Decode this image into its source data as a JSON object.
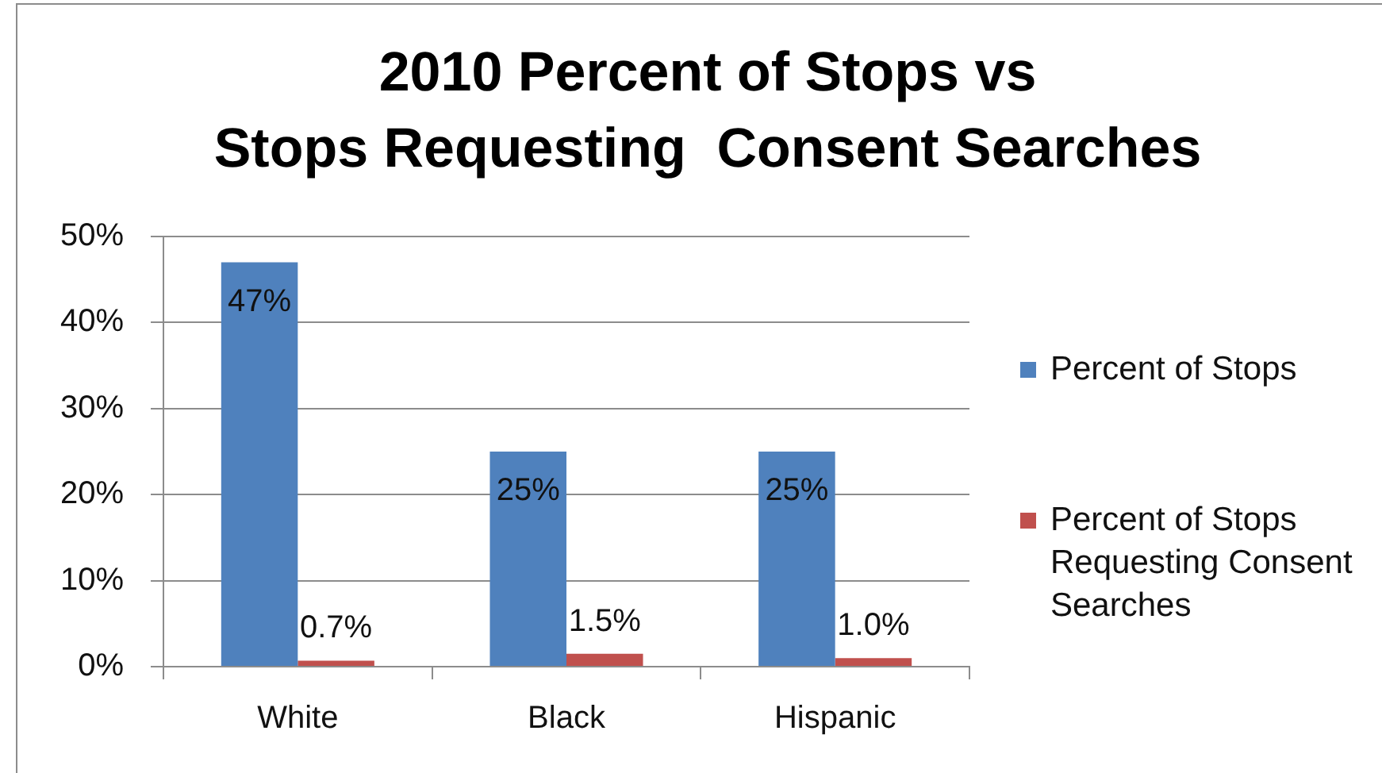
{
  "chart_data": {
    "type": "bar",
    "title": "2010 Percent of Stops vs\nStops Requesting  Consent Searches",
    "categories": [
      "White",
      "Black",
      "Hispanic"
    ],
    "series": [
      {
        "name": "Percent of Stops",
        "color": "#4f81bd",
        "values": [
          47,
          25,
          25
        ],
        "value_labels": [
          "47%",
          "25%",
          "25%"
        ]
      },
      {
        "name": "Percent of Stops Requesting Consent Searches",
        "color": "#c0504d",
        "values": [
          0.7,
          1.5,
          1.0
        ],
        "value_labels": [
          "0.7%",
          "1.5%",
          "1.0%"
        ]
      }
    ],
    "ylim": [
      0,
      50
    ],
    "yticks": [
      {
        "value": 0,
        "label": "0%"
      },
      {
        "value": 10,
        "label": "10%"
      },
      {
        "value": 20,
        "label": "20%"
      },
      {
        "value": 30,
        "label": "30%"
      },
      {
        "value": 40,
        "label": "40%"
      },
      {
        "value": 50,
        "label": "50%"
      }
    ],
    "grid": "y",
    "legend": "right"
  }
}
